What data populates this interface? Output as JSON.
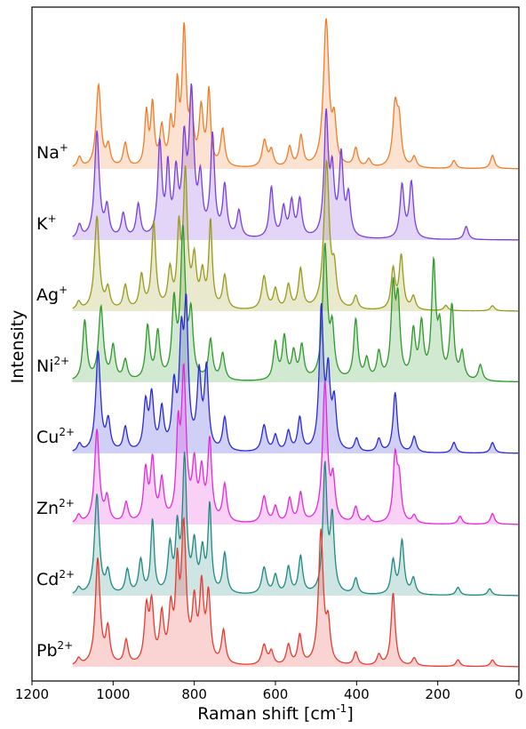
{
  "chart_data": {
    "type": "line",
    "xlabel_text": "Raman shift [cm",
    "xlabel_sup": "-1",
    "xlabel_close": "]",
    "ylabel": "Intensity",
    "xlim": [
      1200,
      0
    ],
    "x_reversed": true,
    "x_ticks": [
      1200,
      1000,
      800,
      600,
      400,
      200,
      0
    ],
    "y_ticks": [],
    "grid": false,
    "legend": "none",
    "series": [
      {
        "label_base": "Na",
        "label_sup": "+",
        "color": "#f07d2a",
        "peaks": [
          [
            1083,
            0.08,
            6
          ],
          [
            1036,
            0.62,
            7
          ],
          [
            1012,
            0.15,
            6
          ],
          [
            970,
            0.18,
            6
          ],
          [
            918,
            0.4,
            5
          ],
          [
            903,
            0.45,
            5
          ],
          [
            880,
            0.28,
            6
          ],
          [
            858,
            0.3,
            5
          ],
          [
            842,
            0.55,
            5
          ],
          [
            825,
            1.0,
            6
          ],
          [
            807,
            0.45,
            5
          ],
          [
            783,
            0.42,
            6
          ],
          [
            764,
            0.55,
            5
          ],
          [
            730,
            0.28,
            6
          ],
          [
            627,
            0.2,
            7
          ],
          [
            610,
            0.12,
            6
          ],
          [
            565,
            0.15,
            6
          ],
          [
            537,
            0.23,
            6
          ],
          [
            475,
            1.1,
            8
          ],
          [
            455,
            0.3,
            6
          ],
          [
            402,
            0.14,
            6
          ],
          [
            370,
            0.06,
            6
          ],
          [
            305,
            0.45,
            7
          ],
          [
            295,
            0.3,
            6
          ],
          [
            258,
            0.08,
            6
          ],
          [
            160,
            0.06,
            6
          ],
          [
            65,
            0.1,
            6
          ]
        ]
      },
      {
        "label_base": "K",
        "label_sup": "+",
        "color": "#7a3fe0",
        "peaks": [
          [
            1083,
            0.1,
            6
          ],
          [
            1040,
            0.8,
            7
          ],
          [
            1015,
            0.22,
            6
          ],
          [
            975,
            0.18,
            6
          ],
          [
            938,
            0.25,
            6
          ],
          [
            885,
            0.7,
            6
          ],
          [
            865,
            0.5,
            5
          ],
          [
            845,
            0.45,
            6
          ],
          [
            825,
            0.65,
            6
          ],
          [
            807,
            1.05,
            7
          ],
          [
            785,
            0.4,
            6
          ],
          [
            755,
            0.75,
            6
          ],
          [
            725,
            0.38,
            6
          ],
          [
            690,
            0.2,
            6
          ],
          [
            610,
            0.38,
            6
          ],
          [
            580,
            0.22,
            6
          ],
          [
            560,
            0.26,
            6
          ],
          [
            540,
            0.28,
            6
          ],
          [
            475,
            0.9,
            6
          ],
          [
            460,
            0.45,
            6
          ],
          [
            438,
            0.6,
            6
          ],
          [
            420,
            0.3,
            6
          ],
          [
            288,
            0.4,
            6
          ],
          [
            265,
            0.42,
            6
          ],
          [
            130,
            0.1,
            6
          ]
        ]
      },
      {
        "label_base": "Ag",
        "label_sup": "+",
        "color": "#9a9a1a",
        "peaks": [
          [
            1085,
            0.06,
            6
          ],
          [
            1040,
            0.7,
            7
          ],
          [
            1013,
            0.15,
            6
          ],
          [
            970,
            0.18,
            6
          ],
          [
            930,
            0.25,
            6
          ],
          [
            900,
            0.65,
            6
          ],
          [
            860,
            0.28,
            6
          ],
          [
            838,
            0.55,
            5
          ],
          [
            822,
            1.0,
            6
          ],
          [
            800,
            0.35,
            6
          ],
          [
            780,
            0.25,
            6
          ],
          [
            760,
            0.65,
            5
          ],
          [
            725,
            0.25,
            6
          ],
          [
            628,
            0.25,
            7
          ],
          [
            600,
            0.15,
            6
          ],
          [
            568,
            0.18,
            6
          ],
          [
            538,
            0.3,
            6
          ],
          [
            474,
            1.1,
            8
          ],
          [
            455,
            0.25,
            6
          ],
          [
            402,
            0.1,
            6
          ],
          [
            310,
            0.3,
            6
          ],
          [
            290,
            0.4,
            6
          ],
          [
            260,
            0.1,
            6
          ],
          [
            180,
            0.04,
            6
          ],
          [
            65,
            0.04,
            6
          ]
        ]
      },
      {
        "label_base": "Ni",
        "label_sup": "2+",
        "color": "#2e9a2a",
        "peaks": [
          [
            1070,
            0.45,
            6
          ],
          [
            1030,
            0.55,
            7
          ],
          [
            1000,
            0.25,
            6
          ],
          [
            970,
            0.15,
            6
          ],
          [
            915,
            0.4,
            6
          ],
          [
            890,
            0.35,
            6
          ],
          [
            850,
            0.55,
            6
          ],
          [
            828,
            1.1,
            7
          ],
          [
            808,
            0.45,
            6
          ],
          [
            760,
            0.3,
            6
          ],
          [
            730,
            0.2,
            6
          ],
          [
            600,
            0.28,
            6
          ],
          [
            578,
            0.32,
            6
          ],
          [
            555,
            0.2,
            6
          ],
          [
            535,
            0.25,
            6
          ],
          [
            478,
            1.0,
            7
          ],
          [
            460,
            0.35,
            6
          ],
          [
            402,
            0.45,
            6
          ],
          [
            375,
            0.15,
            6
          ],
          [
            345,
            0.2,
            6
          ],
          [
            310,
            0.65,
            6
          ],
          [
            298,
            0.55,
            6
          ],
          [
            260,
            0.35,
            6
          ],
          [
            240,
            0.4,
            6
          ],
          [
            210,
            0.85,
            6
          ],
          [
            195,
            0.35,
            6
          ],
          [
            165,
            0.55,
            6
          ],
          [
            140,
            0.2,
            6
          ],
          [
            95,
            0.12,
            6
          ]
        ]
      },
      {
        "label_base": "Cu",
        "label_sup": "2+",
        "color": "#2a2ad8",
        "peaks": [
          [
            1083,
            0.06,
            6
          ],
          [
            1037,
            0.75,
            7
          ],
          [
            1012,
            0.22,
            6
          ],
          [
            970,
            0.18,
            6
          ],
          [
            920,
            0.35,
            6
          ],
          [
            905,
            0.4,
            6
          ],
          [
            880,
            0.3,
            6
          ],
          [
            850,
            0.45,
            6
          ],
          [
            832,
            0.75,
            6
          ],
          [
            820,
            1.0,
            6
          ],
          [
            788,
            0.55,
            6
          ],
          [
            770,
            0.6,
            6
          ],
          [
            725,
            0.25,
            6
          ],
          [
            628,
            0.2,
            7
          ],
          [
            600,
            0.12,
            6
          ],
          [
            568,
            0.15,
            6
          ],
          [
            540,
            0.25,
            6
          ],
          [
            487,
            1.05,
            6
          ],
          [
            470,
            0.55,
            6
          ],
          [
            455,
            0.35,
            6
          ],
          [
            400,
            0.1,
            6
          ],
          [
            345,
            0.1,
            6
          ],
          [
            305,
            0.45,
            6
          ],
          [
            258,
            0.12,
            6
          ],
          [
            160,
            0.08,
            6
          ],
          [
            65,
            0.08,
            6
          ]
        ]
      },
      {
        "label_base": "Zn",
        "label_sup": "2+",
        "color": "#e32ad8",
        "peaks": [
          [
            1085,
            0.06,
            6
          ],
          [
            1040,
            0.7,
            7
          ],
          [
            1015,
            0.18,
            6
          ],
          [
            968,
            0.15,
            6
          ],
          [
            920,
            0.38,
            6
          ],
          [
            903,
            0.45,
            6
          ],
          [
            880,
            0.3,
            6
          ],
          [
            840,
            0.6,
            5
          ],
          [
            826,
            1.1,
            7
          ],
          [
            800,
            0.4,
            6
          ],
          [
            782,
            0.35,
            6
          ],
          [
            762,
            0.6,
            6
          ],
          [
            725,
            0.28,
            6
          ],
          [
            628,
            0.2,
            7
          ],
          [
            600,
            0.12,
            6
          ],
          [
            565,
            0.18,
            6
          ],
          [
            538,
            0.22,
            6
          ],
          [
            478,
            1.05,
            7
          ],
          [
            458,
            0.3,
            6
          ],
          [
            402,
            0.12,
            6
          ],
          [
            372,
            0.05,
            6
          ],
          [
            305,
            0.48,
            6
          ],
          [
            295,
            0.3,
            6
          ],
          [
            258,
            0.06,
            6
          ],
          [
            145,
            0.06,
            6
          ],
          [
            65,
            0.08,
            6
          ]
        ]
      },
      {
        "label_base": "Cd",
        "label_sup": "2+",
        "color": "#1e8a82",
        "peaks": [
          [
            1085,
            0.05,
            6
          ],
          [
            1040,
            0.75,
            7
          ],
          [
            1013,
            0.16,
            6
          ],
          [
            965,
            0.18,
            6
          ],
          [
            932,
            0.25,
            6
          ],
          [
            903,
            0.55,
            5
          ],
          [
            860,
            0.35,
            6
          ],
          [
            842,
            0.45,
            5
          ],
          [
            824,
            1.0,
            6
          ],
          [
            800,
            0.35,
            6
          ],
          [
            780,
            0.3,
            6
          ],
          [
            762,
            0.65,
            5
          ],
          [
            725,
            0.3,
            6
          ],
          [
            628,
            0.2,
            7
          ],
          [
            600,
            0.14,
            6
          ],
          [
            568,
            0.2,
            6
          ],
          [
            538,
            0.28,
            6
          ],
          [
            478,
            0.95,
            6
          ],
          [
            460,
            0.55,
            6
          ],
          [
            402,
            0.12,
            6
          ],
          [
            310,
            0.25,
            6
          ],
          [
            288,
            0.4,
            6
          ],
          [
            260,
            0.12,
            6
          ],
          [
            150,
            0.06,
            6
          ],
          [
            72,
            0.05,
            6
          ]
        ]
      },
      {
        "label_base": "Pb",
        "label_sup": "2+",
        "color": "#e83a30",
        "peaks": [
          [
            1085,
            0.05,
            6
          ],
          [
            1038,
            0.8,
            7
          ],
          [
            1013,
            0.26,
            6
          ],
          [
            968,
            0.18,
            6
          ],
          [
            918,
            0.4,
            6
          ],
          [
            905,
            0.42,
            6
          ],
          [
            880,
            0.35,
            6
          ],
          [
            858,
            0.38,
            6
          ],
          [
            842,
            0.65,
            5
          ],
          [
            826,
            1.0,
            7
          ],
          [
            800,
            0.42,
            6
          ],
          [
            782,
            0.55,
            6
          ],
          [
            765,
            0.5,
            6
          ],
          [
            728,
            0.25,
            6
          ],
          [
            628,
            0.15,
            7
          ],
          [
            610,
            0.1,
            6
          ],
          [
            568,
            0.15,
            6
          ],
          [
            540,
            0.22,
            6
          ],
          [
            488,
            1.0,
            7
          ],
          [
            470,
            0.28,
            6
          ],
          [
            402,
            0.1,
            6
          ],
          [
            345,
            0.08,
            6
          ],
          [
            310,
            0.55,
            6
          ],
          [
            258,
            0.06,
            6
          ],
          [
            150,
            0.05,
            6
          ],
          [
            65,
            0.05,
            6
          ]
        ]
      }
    ]
  }
}
